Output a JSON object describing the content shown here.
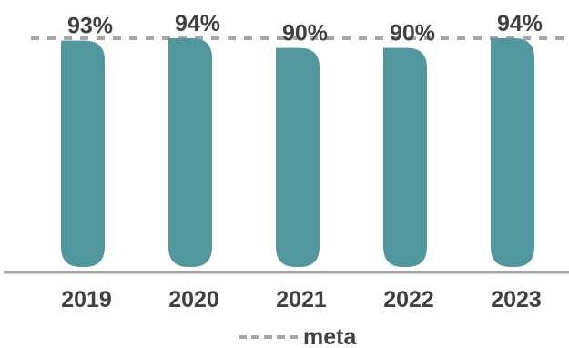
{
  "chart_data": {
    "type": "bar",
    "categories": [
      "2019",
      "2020",
      "2021",
      "2022",
      "2023"
    ],
    "values": [
      93,
      94,
      90,
      90,
      94
    ],
    "value_suffix": "%",
    "target": {
      "name": "meta",
      "value": 94
    },
    "legend": {
      "placement": "bottom",
      "entries": [
        "meta"
      ]
    },
    "grid": false,
    "colors": {
      "bar": "#53979e",
      "target_line": "#a6a6a6",
      "axis_line": "#a6a6a6",
      "text": "#404040"
    }
  }
}
